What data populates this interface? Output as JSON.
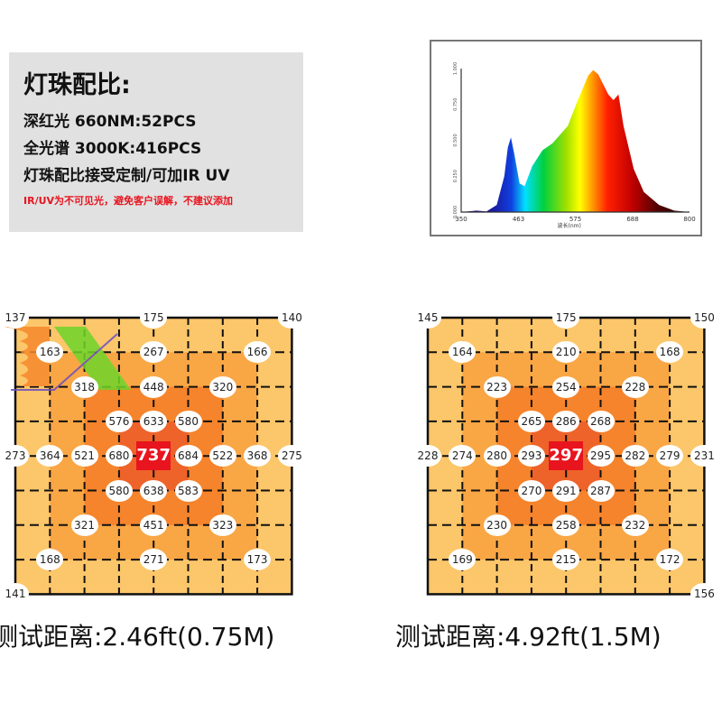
{
  "info": {
    "title": "灯珠配比:",
    "lines": [
      "深红光 660NM:52PCS",
      "全光谱 3000K:416PCS",
      "灯珠配比接受定制/可加IR UV"
    ],
    "warning": "IR/UV为不可见光，避免客户误解，不建议添加",
    "warning_color": "#e8141e"
  },
  "chart_data": {
    "type": "area",
    "title": "",
    "xlabel": "波长(nm)",
    "ylabel": "",
    "xlim": [
      350,
      800
    ],
    "ylim": [
      0,
      1
    ],
    "x_ticks": [
      "350",
      "463",
      "575",
      "688",
      "800"
    ],
    "y_ticks": [
      "0.000",
      "0.250",
      "0.500",
      "0.750",
      "1.000"
    ],
    "x": [
      350,
      380,
      400,
      420,
      435,
      442,
      448,
      455,
      465,
      475,
      490,
      510,
      530,
      560,
      580,
      600,
      610,
      620,
      640,
      650,
      660,
      670,
      690,
      710,
      740,
      770,
      800
    ],
    "y": [
      0,
      0.01,
      0.005,
      0.05,
      0.25,
      0.45,
      0.52,
      0.4,
      0.2,
      0.18,
      0.32,
      0.43,
      0.48,
      0.6,
      0.78,
      0.95,
      0.99,
      0.96,
      0.82,
      0.78,
      0.82,
      0.6,
      0.3,
      0.14,
      0.05,
      0.01,
      0
    ]
  },
  "grids": [
    {
      "caption": "测试距离:2.46ft(0.75M)",
      "max": "737",
      "points": [
        {
          "r": 0,
          "c": 0,
          "v": "137"
        },
        {
          "r": 0,
          "c": 4,
          "v": "175"
        },
        {
          "r": 0,
          "c": 8,
          "v": "140"
        },
        {
          "r": 1,
          "c": 1,
          "v": "163"
        },
        {
          "r": 1,
          "c": 4,
          "v": "267"
        },
        {
          "r": 1,
          "c": 7,
          "v": "166"
        },
        {
          "r": 2,
          "c": 2,
          "v": "318"
        },
        {
          "r": 2,
          "c": 4,
          "v": "448"
        },
        {
          "r": 2,
          "c": 6,
          "v": "320"
        },
        {
          "r": 3,
          "c": 3,
          "v": "576"
        },
        {
          "r": 3,
          "c": 4,
          "v": "633"
        },
        {
          "r": 3,
          "c": 5,
          "v": "580"
        },
        {
          "r": 4,
          "c": 0,
          "v": "273"
        },
        {
          "r": 4,
          "c": 1,
          "v": "364"
        },
        {
          "r": 4,
          "c": 2,
          "v": "521"
        },
        {
          "r": 4,
          "c": 3,
          "v": "680"
        },
        {
          "r": 4,
          "c": 5,
          "v": "684"
        },
        {
          "r": 4,
          "c": 6,
          "v": "522"
        },
        {
          "r": 4,
          "c": 7,
          "v": "368"
        },
        {
          "r": 4,
          "c": 8,
          "v": "275"
        },
        {
          "r": 5,
          "c": 3,
          "v": "580"
        },
        {
          "r": 5,
          "c": 4,
          "v": "638"
        },
        {
          "r": 5,
          "c": 5,
          "v": "583"
        },
        {
          "r": 6,
          "c": 2,
          "v": "321"
        },
        {
          "r": 6,
          "c": 4,
          "v": "451"
        },
        {
          "r": 6,
          "c": 6,
          "v": "323"
        },
        {
          "r": 7,
          "c": 1,
          "v": "168"
        },
        {
          "r": 7,
          "c": 4,
          "v": "271"
        },
        {
          "r": 7,
          "c": 7,
          "v": "173"
        },
        {
          "r": 8,
          "c": 0,
          "v": "141"
        }
      ]
    },
    {
      "caption": "测试距离:4.92ft(1.5M)",
      "max": "297",
      "points": [
        {
          "r": 0,
          "c": 0,
          "v": "145"
        },
        {
          "r": 0,
          "c": 4,
          "v": "175"
        },
        {
          "r": 0,
          "c": 8,
          "v": "150"
        },
        {
          "r": 1,
          "c": 1,
          "v": "164"
        },
        {
          "r": 1,
          "c": 4,
          "v": "210"
        },
        {
          "r": 1,
          "c": 7,
          "v": "168"
        },
        {
          "r": 2,
          "c": 2,
          "v": "223"
        },
        {
          "r": 2,
          "c": 4,
          "v": "254"
        },
        {
          "r": 2,
          "c": 6,
          "v": "228"
        },
        {
          "r": 3,
          "c": 3,
          "v": "265"
        },
        {
          "r": 3,
          "c": 4,
          "v": "286"
        },
        {
          "r": 3,
          "c": 5,
          "v": "268"
        },
        {
          "r": 4,
          "c": 0,
          "v": "228"
        },
        {
          "r": 4,
          "c": 1,
          "v": "274"
        },
        {
          "r": 4,
          "c": 2,
          "v": "280"
        },
        {
          "r": 4,
          "c": 3,
          "v": "293"
        },
        {
          "r": 4,
          "c": 5,
          "v": "295"
        },
        {
          "r": 4,
          "c": 6,
          "v": "282"
        },
        {
          "r": 4,
          "c": 7,
          "v": "279"
        },
        {
          "r": 4,
          "c": 8,
          "v": "231"
        },
        {
          "r": 5,
          "c": 3,
          "v": "270"
        },
        {
          "r": 5,
          "c": 4,
          "v": "291"
        },
        {
          "r": 5,
          "c": 5,
          "v": "287"
        },
        {
          "r": 6,
          "c": 2,
          "v": "230"
        },
        {
          "r": 6,
          "c": 4,
          "v": "258"
        },
        {
          "r": 6,
          "c": 6,
          "v": "232"
        },
        {
          "r": 7,
          "c": 1,
          "v": "169"
        },
        {
          "r": 7,
          "c": 4,
          "v": "215"
        },
        {
          "r": 7,
          "c": 7,
          "v": "172"
        },
        {
          "r": 8,
          "c": 8,
          "v": "156"
        }
      ]
    }
  ],
  "colors": {
    "ring0": "#ee6329",
    "ring1": "#f5842c",
    "ring2": "#f9a645",
    "ring3": "#fcc66a"
  }
}
